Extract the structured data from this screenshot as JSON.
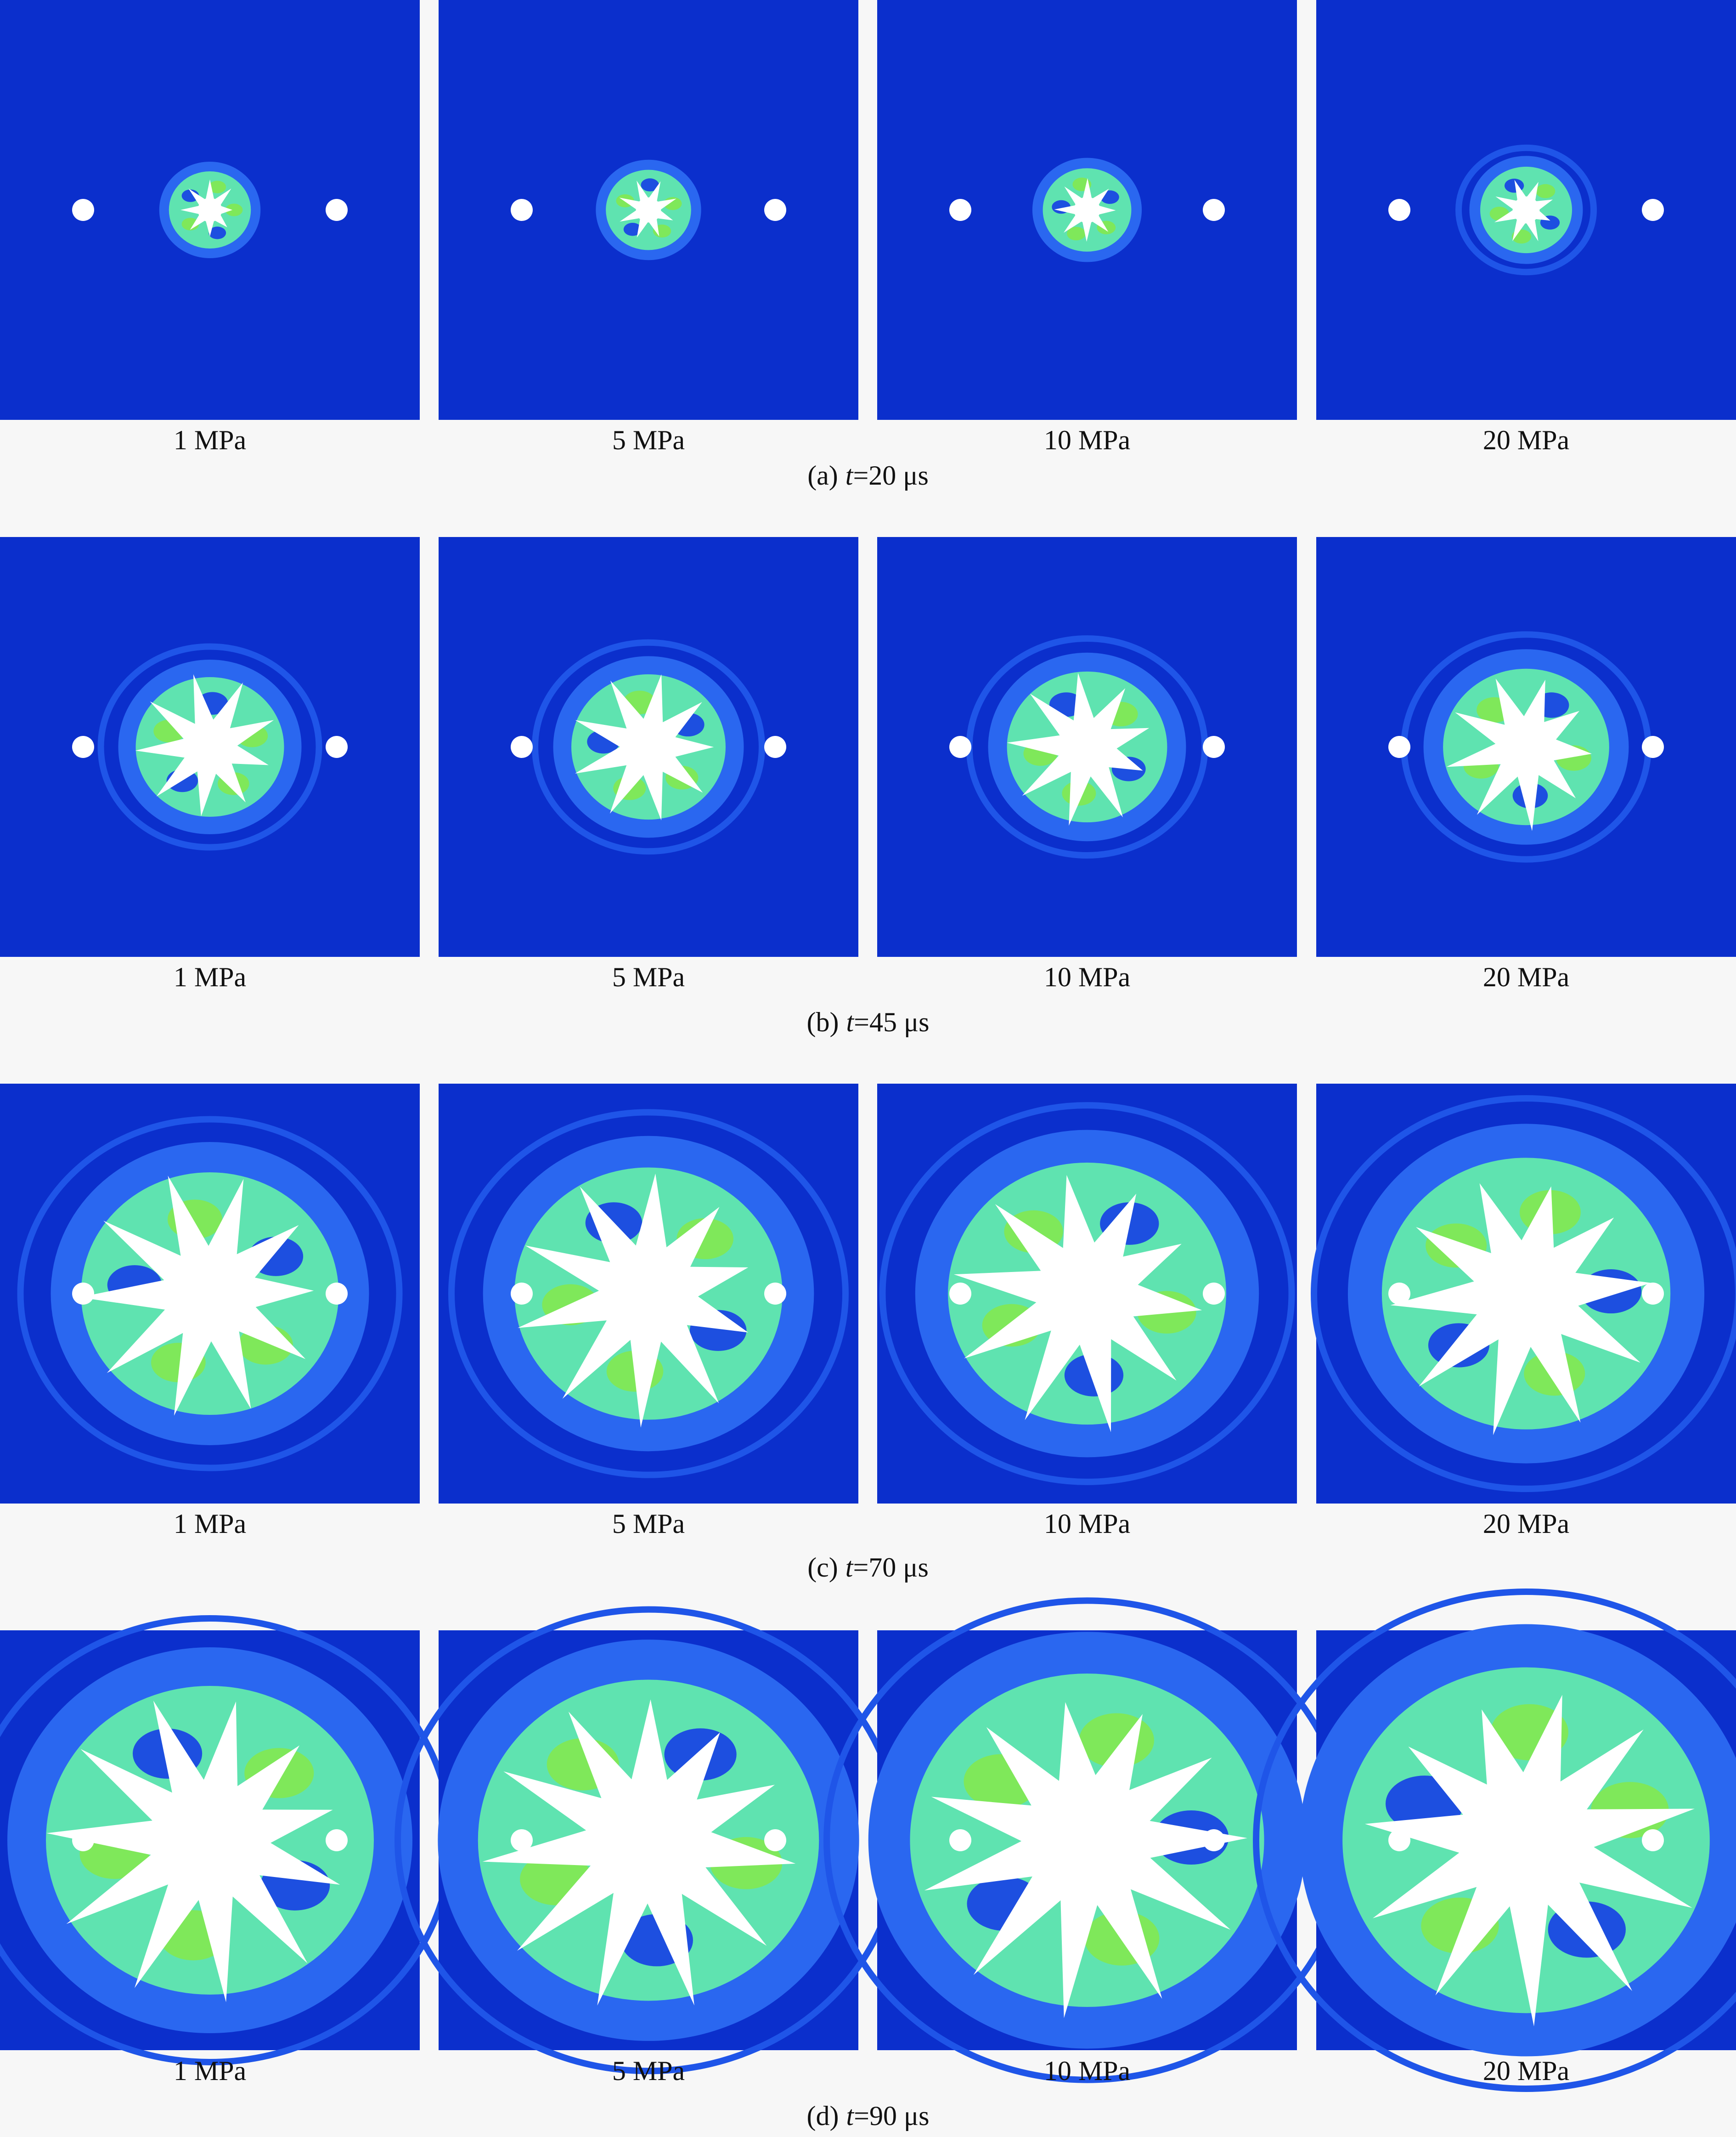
{
  "figure": {
    "rows": [
      {
        "panels": [
          "1 MPa",
          "5 MPa",
          "10 MPa",
          "20 MPa"
        ],
        "caption": {
          "label": "(a)",
          "var": "t",
          "rest": "=20 μs"
        }
      },
      {
        "panels": [
          "1 MPa",
          "5 MPa",
          "10 MPa",
          "20 MPa"
        ],
        "caption": {
          "label": "(b)",
          "var": "t",
          "rest": "=45 μs"
        }
      },
      {
        "panels": [
          "1 MPa",
          "5 MPa",
          "10 MPa",
          "20 MPa"
        ],
        "caption": {
          "label": "(c)",
          "var": "t",
          "rest": "=70 μs"
        }
      },
      {
        "panels": [
          "1 MPa",
          "5 MPa",
          "10 MPa",
          "20 MPa"
        ],
        "caption": {
          "label": "(d)",
          "var": "t",
          "rest": "=90 μs"
        }
      }
    ]
  }
}
